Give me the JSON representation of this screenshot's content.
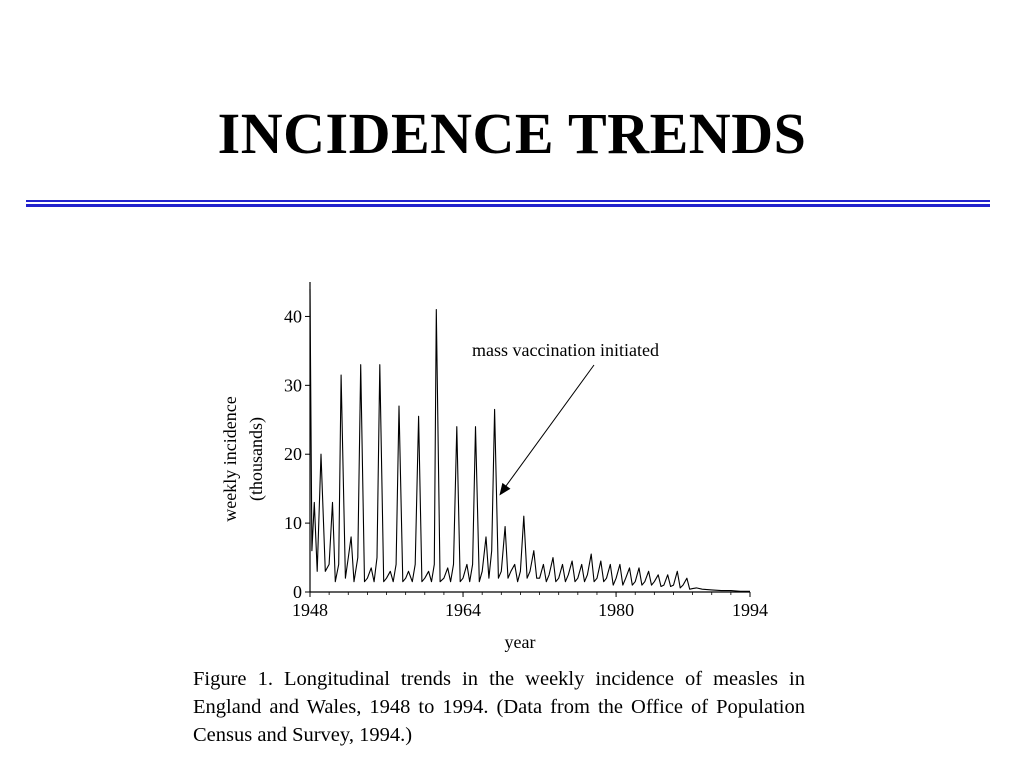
{
  "slide": {
    "title": "INCIDENCE TRENDS",
    "rule_color": "#2222cc"
  },
  "chart_data": {
    "type": "line",
    "title": "",
    "xlabel": "year",
    "ylabel": "weekly incidence",
    "ylabel_unit": "(thousands)",
    "xlim": [
      1948,
      1994
    ],
    "ylim": [
      0,
      45
    ],
    "xticks": [
      1948,
      1964,
      1980,
      1994
    ],
    "yticks": [
      0,
      10,
      20,
      30,
      40
    ],
    "grid": false,
    "annotation": {
      "text": "mass vaccination initiated",
      "arrow_target": [
        1967.8,
        14
      ]
    },
    "series": [
      {
        "values": [
          [
            1948.0,
            44
          ],
          [
            1948.2,
            6
          ],
          [
            1948.45,
            13
          ],
          [
            1948.75,
            3
          ],
          [
            1949.15,
            20
          ],
          [
            1949.6,
            3
          ],
          [
            1950.0,
            4
          ],
          [
            1950.35,
            13
          ],
          [
            1950.65,
            1.5
          ],
          [
            1951.0,
            4
          ],
          [
            1951.25,
            31.5
          ],
          [
            1951.7,
            2
          ],
          [
            1952.0,
            5
          ],
          [
            1952.3,
            8
          ],
          [
            1952.6,
            1.5
          ],
          [
            1953.0,
            5
          ],
          [
            1953.3,
            33
          ],
          [
            1953.7,
            1.5
          ],
          [
            1954.0,
            2
          ],
          [
            1954.4,
            3.5
          ],
          [
            1954.7,
            1.5
          ],
          [
            1955.0,
            5
          ],
          [
            1955.3,
            33
          ],
          [
            1955.7,
            1.5
          ],
          [
            1956.0,
            2
          ],
          [
            1956.4,
            3
          ],
          [
            1956.7,
            1.5
          ],
          [
            1957.0,
            4
          ],
          [
            1957.3,
            27
          ],
          [
            1957.7,
            1.5
          ],
          [
            1958.0,
            2
          ],
          [
            1958.3,
            3
          ],
          [
            1958.7,
            1.5
          ],
          [
            1959.0,
            4
          ],
          [
            1959.35,
            25.5
          ],
          [
            1959.7,
            1.5
          ],
          [
            1960.0,
            2
          ],
          [
            1960.4,
            3
          ],
          [
            1960.7,
            1.5
          ],
          [
            1961.0,
            4
          ],
          [
            1961.2,
            41
          ],
          [
            1961.6,
            1.5
          ],
          [
            1962.0,
            2
          ],
          [
            1962.4,
            3.5
          ],
          [
            1962.7,
            1.5
          ],
          [
            1963.0,
            4
          ],
          [
            1963.35,
            24
          ],
          [
            1963.7,
            1.5
          ],
          [
            1964.0,
            2
          ],
          [
            1964.4,
            4
          ],
          [
            1964.7,
            1.5
          ],
          [
            1965.0,
            4
          ],
          [
            1965.3,
            24
          ],
          [
            1965.7,
            1.5
          ],
          [
            1966.0,
            3
          ],
          [
            1966.4,
            8
          ],
          [
            1966.7,
            2
          ],
          [
            1967.0,
            6
          ],
          [
            1967.3,
            26.5
          ],
          [
            1967.7,
            2
          ],
          [
            1968.0,
            3
          ],
          [
            1968.4,
            9.5
          ],
          [
            1968.7,
            2
          ],
          [
            1969.0,
            3
          ],
          [
            1969.4,
            4
          ],
          [
            1969.7,
            1.5
          ],
          [
            1970.0,
            3
          ],
          [
            1970.35,
            11
          ],
          [
            1970.7,
            2
          ],
          [
            1971.0,
            3
          ],
          [
            1971.4,
            6
          ],
          [
            1971.7,
            2
          ],
          [
            1972.0,
            2
          ],
          [
            1972.4,
            4
          ],
          [
            1972.7,
            1.5
          ],
          [
            1973.0,
            2.5
          ],
          [
            1973.4,
            5
          ],
          [
            1973.7,
            1.5
          ],
          [
            1974.0,
            2
          ],
          [
            1974.4,
            4
          ],
          [
            1974.7,
            1.5
          ],
          [
            1975.0,
            2.5
          ],
          [
            1975.4,
            4.5
          ],
          [
            1975.7,
            1.5
          ],
          [
            1976.0,
            2
          ],
          [
            1976.4,
            4
          ],
          [
            1976.7,
            1.5
          ],
          [
            1977.0,
            2.5
          ],
          [
            1977.4,
            5.5
          ],
          [
            1977.7,
            1.5
          ],
          [
            1978.0,
            2
          ],
          [
            1978.4,
            4.5
          ],
          [
            1978.7,
            1.5
          ],
          [
            1979.0,
            2
          ],
          [
            1979.4,
            4
          ],
          [
            1979.7,
            1
          ],
          [
            1980.0,
            2
          ],
          [
            1980.4,
            4
          ],
          [
            1980.7,
            1
          ],
          [
            1981.0,
            2
          ],
          [
            1981.4,
            3.5
          ],
          [
            1981.7,
            1
          ],
          [
            1982.0,
            1.5
          ],
          [
            1982.4,
            3.5
          ],
          [
            1982.7,
            1
          ],
          [
            1983.0,
            1.5
          ],
          [
            1983.4,
            3
          ],
          [
            1983.7,
            1
          ],
          [
            1984.0,
            1.5
          ],
          [
            1984.4,
            2.5
          ],
          [
            1984.7,
            0.8
          ],
          [
            1985.0,
            1
          ],
          [
            1985.4,
            2.5
          ],
          [
            1985.7,
            0.8
          ],
          [
            1986.0,
            1
          ],
          [
            1986.4,
            3
          ],
          [
            1986.7,
            0.6
          ],
          [
            1987.0,
            1
          ],
          [
            1987.4,
            2
          ],
          [
            1987.7,
            0.4
          ],
          [
            1988.0,
            0.5
          ],
          [
            1988.4,
            0.6
          ],
          [
            1989.0,
            0.4
          ],
          [
            1990.0,
            0.3
          ],
          [
            1991.0,
            0.2
          ],
          [
            1992.0,
            0.2
          ],
          [
            1993.0,
            0.1
          ],
          [
            1994.0,
            0.1
          ]
        ]
      }
    ]
  },
  "caption": {
    "text": "Figure 1. Longitudinal trends in the weekly incidence of measles in England and Wales, 1948 to 1994. (Data from the Office of Population Census and Survey, 1994.)"
  }
}
